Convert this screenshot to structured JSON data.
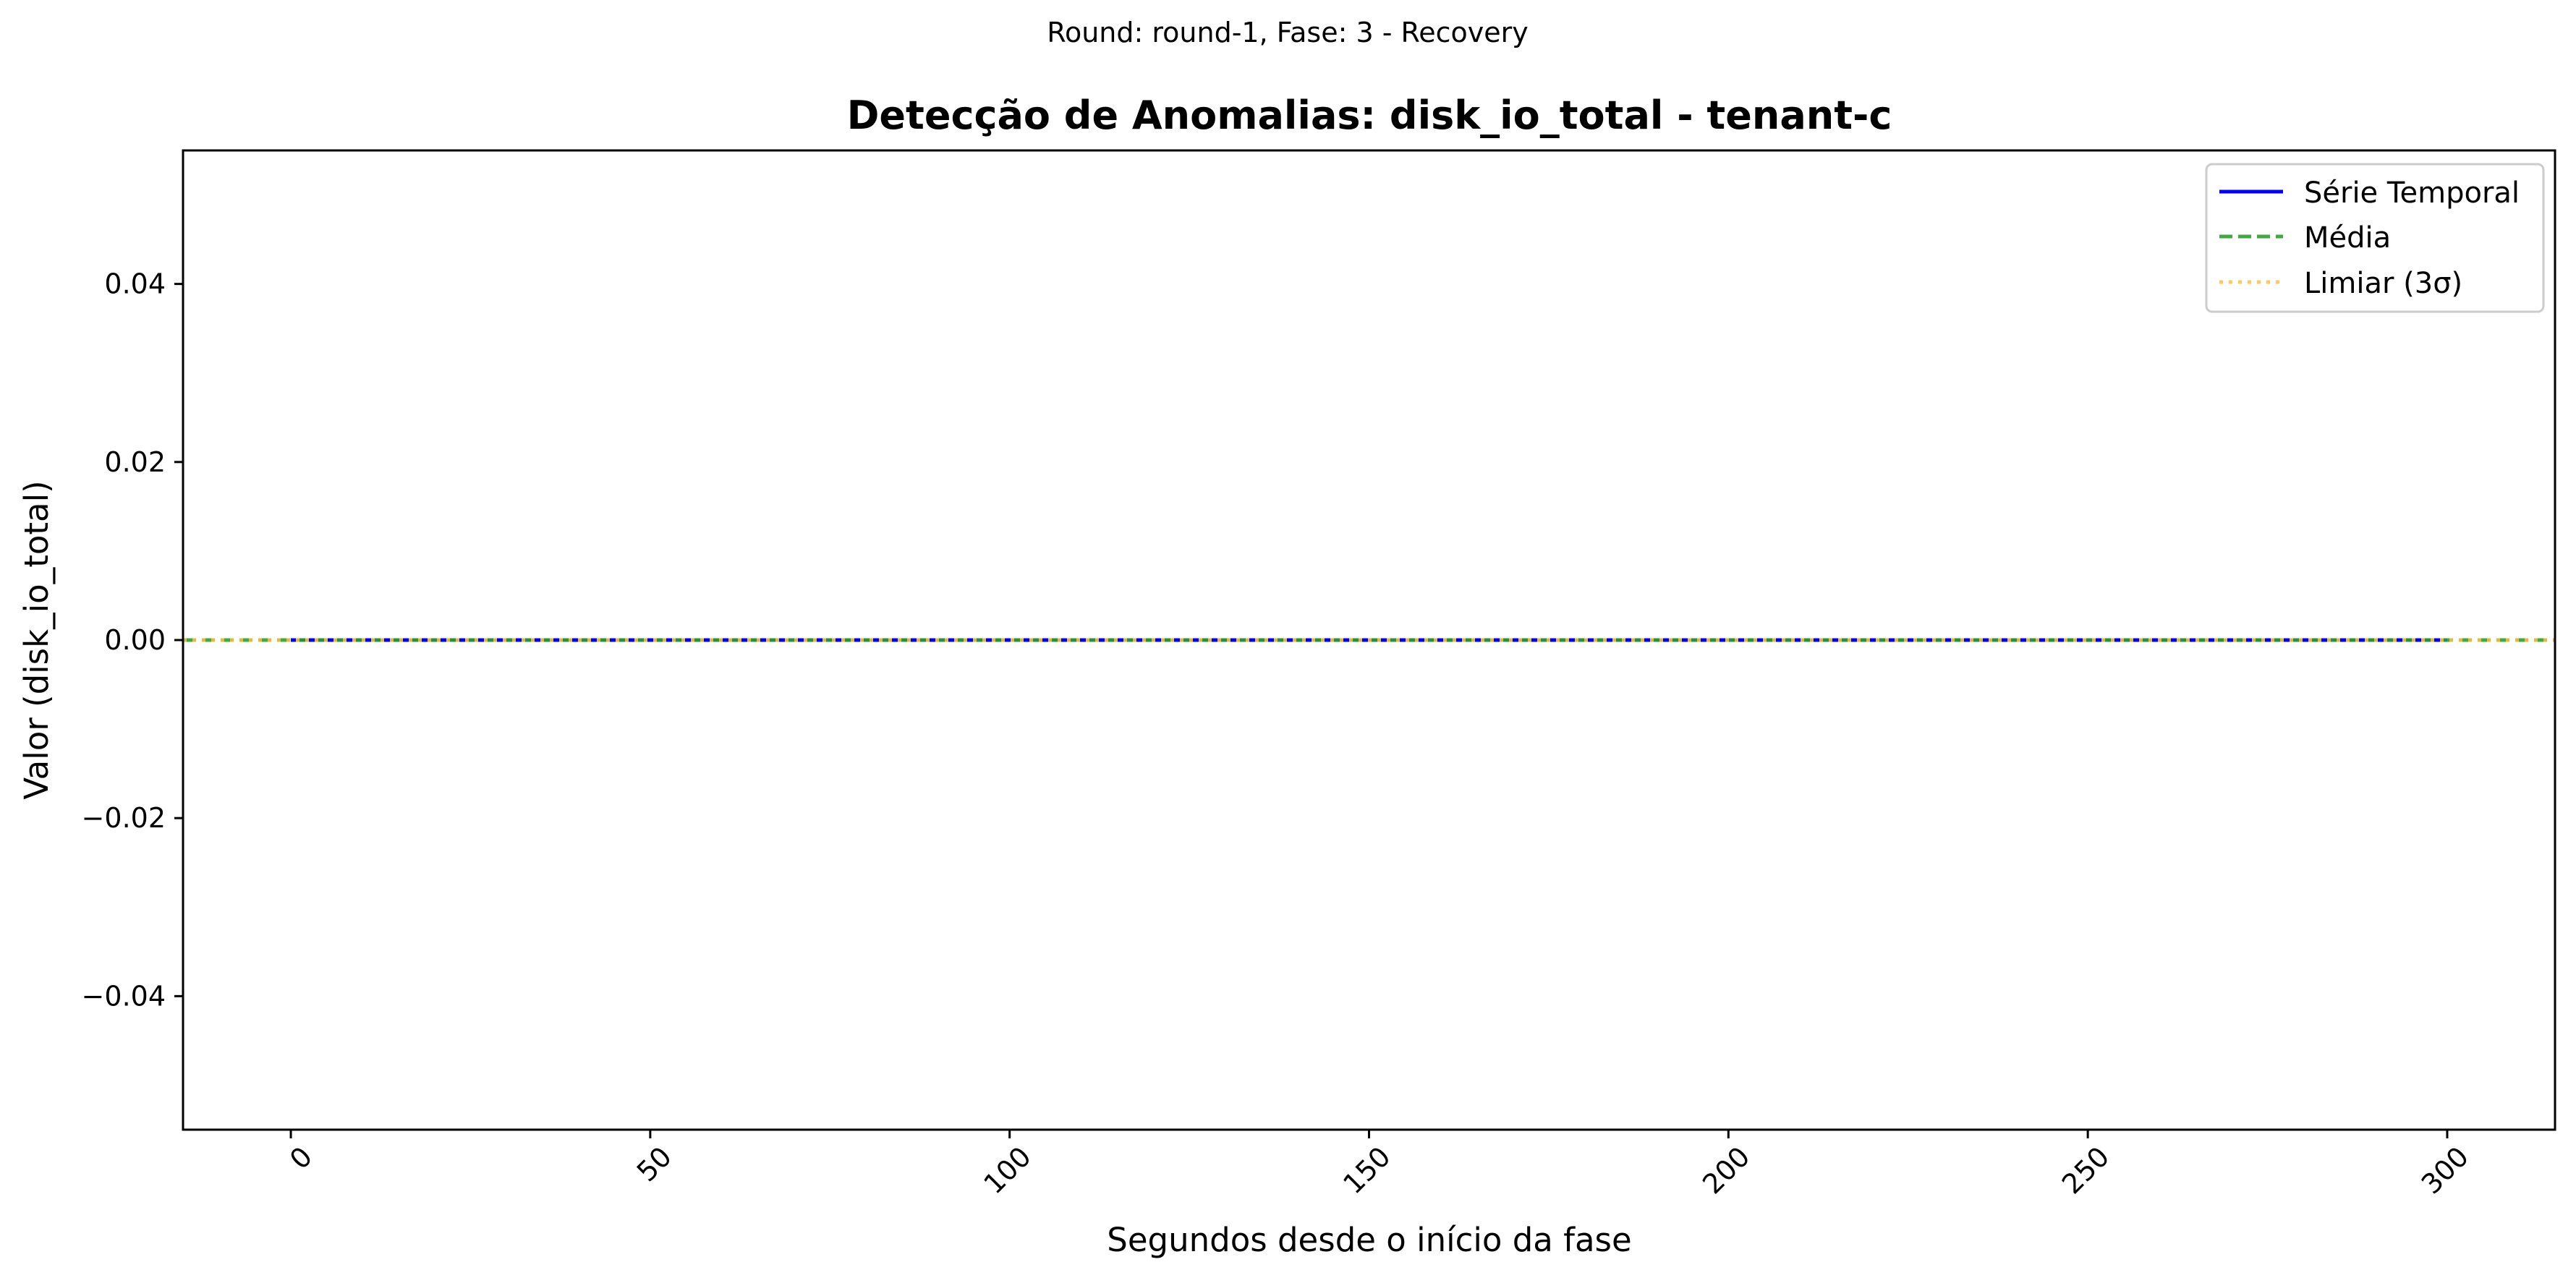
{
  "chart_data": {
    "type": "line",
    "suptitle": "Round: round-1, Fase: 3 - Recovery",
    "title": "Detecção de Anomalias: disk_io_total - tenant-c",
    "xlabel": "Segundos desde o início da fase",
    "ylabel": "Valor (disk_io_total)",
    "xlim": [
      -15,
      315
    ],
    "ylim": [
      -0.055,
      0.055
    ],
    "xticks": [
      0,
      50,
      100,
      150,
      200,
      250,
      300
    ],
    "xtick_labels": [
      "0",
      "50",
      "100",
      "150",
      "200",
      "250",
      "300"
    ],
    "xtick_rotation": 45,
    "yticks": [
      -0.04,
      -0.02,
      0.0,
      0.02,
      0.04
    ],
    "ytick_labels": [
      "−0.04",
      "−0.02",
      "0.00",
      "0.02",
      "0.04"
    ],
    "grid": false,
    "legend_position": "top-right",
    "series": [
      {
        "name": "Série Temporal",
        "style": "solid",
        "color": "#0000ff",
        "x": [
          0,
          300
        ],
        "y": [
          0,
          0
        ]
      }
    ],
    "reference_lines": [
      {
        "name": "Média",
        "style": "dashed",
        "color": "#2ca02c",
        "value": 0
      },
      {
        "name": "Limiar (3σ)",
        "style": "dotted",
        "color": "#ffc13a",
        "value": 0
      }
    ]
  }
}
